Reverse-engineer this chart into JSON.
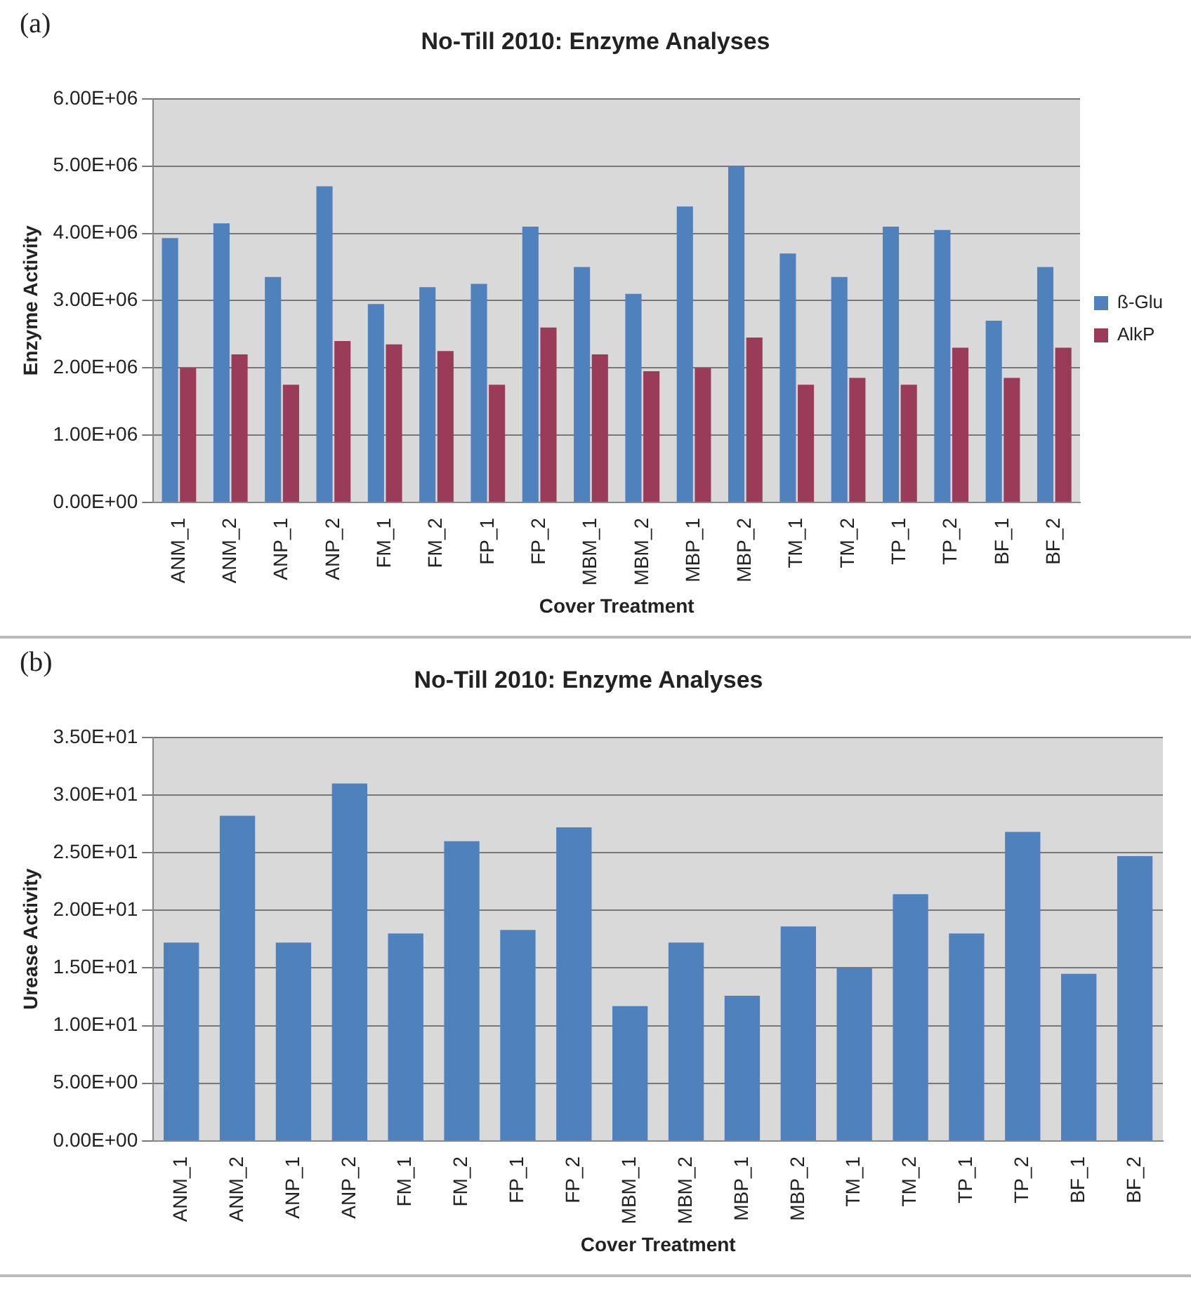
{
  "chart_data": [
    {
      "type": "bar",
      "title": "No-Till 2010: Enzyme Analyses",
      "xlabel": "Cover Treatment",
      "ylabel": "Enzyme Activity",
      "annotations": [
        "(a)"
      ],
      "categories": [
        "ANM_1",
        "ANM_2",
        "ANP_1",
        "ANP_2",
        "FM_1",
        "FM_2",
        "FP_1",
        "FP_2",
        "MBM_1",
        "MBM_2",
        "MBP_1",
        "MBP_2",
        "TM_1",
        "TM_2",
        "TP_1",
        "TP_2",
        "BF_1",
        "BF_2"
      ],
      "series": [
        {
          "name": "ß-Glu",
          "color": "#4f81bd",
          "values": [
            3930000,
            4150000,
            3350000,
            4700000,
            2950000,
            3200000,
            3250000,
            4100000,
            3500000,
            3100000,
            4400000,
            5000000,
            3700000,
            3350000,
            4100000,
            4050000,
            2700000,
            3500000
          ]
        },
        {
          "name": "AlkP",
          "color": "#9b3b5a",
          "values": [
            2000000,
            2200000,
            1750000,
            2400000,
            2350000,
            2250000,
            1750000,
            2600000,
            2200000,
            1950000,
            2000000,
            2450000,
            1750000,
            1850000,
            1750000,
            2300000,
            1850000,
            2300000
          ]
        }
      ],
      "ylim": [
        0,
        6000000
      ],
      "yticks": [
        {
          "value": 0,
          "label": "0.00E+00"
        },
        {
          "value": 1000000,
          "label": "1.00E+06"
        },
        {
          "value": 2000000,
          "label": "2.00E+06"
        },
        {
          "value": 3000000,
          "label": "3.00E+06"
        },
        {
          "value": 4000000,
          "label": "4.00E+06"
        },
        {
          "value": 5000000,
          "label": "5.00E+06"
        },
        {
          "value": 6000000,
          "label": "6.00E+06"
        }
      ],
      "grid": "y",
      "legend": "right"
    },
    {
      "type": "bar",
      "title": "No-Till 2010: Enzyme Analyses",
      "xlabel": "Cover Treatment",
      "ylabel": "Urease Activity",
      "annotations": [
        "(b)"
      ],
      "categories": [
        "ANM_1",
        "ANM_2",
        "ANP_1",
        "ANP_2",
        "FM_1",
        "FM_2",
        "FP_1",
        "FP_2",
        "MBM_1",
        "MBM_2",
        "MBP_1",
        "MBP_2",
        "TM_1",
        "TM_2",
        "TP_1",
        "TP_2",
        "BF_1",
        "BF_2"
      ],
      "series": [
        {
          "color": "#4f81bd",
          "values": [
            17.2,
            28.2,
            17.2,
            31,
            18,
            26,
            18.3,
            27.2,
            11.7,
            17.2,
            12.6,
            18.6,
            15,
            21.4,
            18,
            26.8,
            14.5,
            24.7
          ]
        }
      ],
      "ylim": [
        0,
        35
      ],
      "yticks": [
        {
          "value": 0,
          "label": "0.00E+00"
        },
        {
          "value": 5,
          "label": "5.00E+00"
        },
        {
          "value": 10,
          "label": "1.00E+01"
        },
        {
          "value": 15,
          "label": "1.50E+01"
        },
        {
          "value": 20,
          "label": "2.00E+01"
        },
        {
          "value": 25,
          "label": "2.50E+01"
        },
        {
          "value": 30,
          "label": "3.00E+01"
        },
        {
          "value": 35,
          "label": "3.50E+01"
        }
      ],
      "grid": "y",
      "legend": false
    }
  ]
}
